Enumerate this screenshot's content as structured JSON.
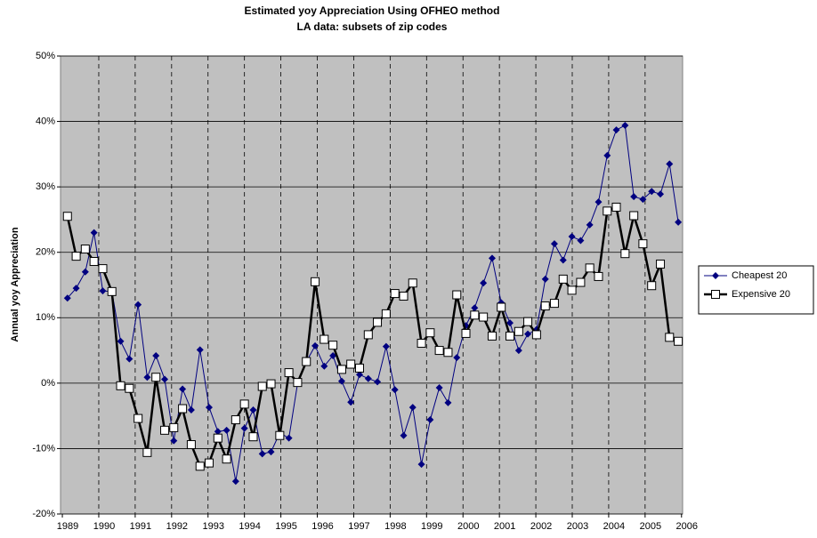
{
  "chart_data": {
    "type": "line",
    "title": "Estimated yoy Appreciation Using OFHEO method",
    "subtitle": "LA data: subsets of zip codes",
    "y_label": "Annual yoy Appreciation",
    "x": [
      1989.14,
      1989.38,
      1989.63,
      1989.87,
      1990.11,
      1990.36,
      1990.6,
      1990.84,
      1991.08,
      1991.33,
      1991.57,
      1991.81,
      1992.06,
      1992.3,
      1992.54,
      1992.78,
      1993.03,
      1993.27,
      1993.51,
      1993.76,
      1994.0,
      1994.24,
      1994.49,
      1994.73,
      1994.97,
      1995.22,
      1995.46,
      1995.7,
      1995.94,
      1996.19,
      1996.43,
      1996.67,
      1996.92,
      1997.16,
      1997.4,
      1997.65,
      1997.89,
      1998.13,
      1998.37,
      1998.62,
      1998.86,
      1999.1,
      1999.35,
      1999.59,
      1999.83,
      2000.08,
      2000.32,
      2000.56,
      2000.8,
      2001.05,
      2001.29,
      2001.53,
      2001.78,
      2002.02,
      2002.26,
      2002.51,
      2002.75,
      2002.99,
      2003.23,
      2003.48,
      2003.72,
      2003.96,
      2004.21,
      2004.45,
      2004.69,
      2004.94,
      2005.18,
      2005.42,
      2005.67,
      2005.91
    ],
    "series": [
      {
        "name": "Cheapest 20",
        "color": "#000080",
        "marker": "diamond",
        "values": [
          13.0,
          14.5,
          17.0,
          23.0,
          14.1,
          14.0,
          6.4,
          3.7,
          12.0,
          0.9,
          4.2,
          0.6,
          -8.8,
          -0.9,
          -4.1,
          5.1,
          -3.7,
          -7.4,
          -7.2,
          -15.0,
          -6.9,
          -4.1,
          -10.8,
          -10.5,
          -7.6,
          -8.4,
          0.0,
          3.3,
          5.7,
          2.6,
          4.2,
          0.3,
          -2.9,
          1.3,
          0.7,
          0.2,
          5.6,
          -1.0,
          -8.0,
          -3.7,
          -12.4,
          -5.6,
          -0.7,
          -3.0,
          3.9,
          8.8,
          11.5,
          15.3,
          19.1,
          12.3,
          9.2,
          5.0,
          7.5,
          8.2,
          15.9,
          21.3,
          18.8,
          22.4,
          21.8,
          24.2,
          27.7,
          34.8,
          38.7,
          39.4,
          28.5,
          28.1,
          29.3,
          28.9,
          33.5,
          24.6
        ]
      },
      {
        "name": "Expensive 20",
        "color": "#000000",
        "marker": "square",
        "values": [
          25.5,
          19.4,
          20.5,
          18.6,
          17.5,
          14.0,
          -0.4,
          -0.8,
          -5.4,
          -10.6,
          0.9,
          -7.2,
          -6.8,
          -3.9,
          -9.4,
          -12.7,
          -12.2,
          -8.4,
          -11.6,
          -5.6,
          -3.2,
          -8.2,
          -0.5,
          -0.1,
          -8.0,
          1.6,
          0.1,
          3.3,
          15.5,
          6.7,
          5.8,
          2.1,
          2.9,
          2.3,
          7.4,
          9.3,
          10.6,
          13.7,
          13.3,
          15.3,
          6.1,
          7.7,
          5.0,
          4.7,
          13.5,
          7.6,
          10.4,
          10.1,
          7.2,
          11.6,
          7.2,
          7.9,
          9.4,
          7.4,
          11.8,
          12.2,
          15.9,
          14.2,
          15.4,
          17.6,
          16.3,
          26.3,
          26.9,
          19.8,
          25.6,
          21.3,
          14.9,
          18.2,
          7.0,
          6.4
        ]
      }
    ],
    "xlim": [
      1988.95,
      2006.03
    ],
    "xticks": [
      1989,
      1990,
      1991,
      1992,
      1993,
      1994,
      1995,
      1996,
      1997,
      1998,
      1999,
      2000,
      2001,
      2002,
      2003,
      2004,
      2005,
      2006
    ],
    "ylim": [
      -20,
      50
    ],
    "yticks": [
      {
        "value": -20,
        "label": "-20%"
      },
      {
        "value": -10,
        "label": "-10%"
      },
      {
        "value": 0,
        "label": "0%"
      },
      {
        "value": 10,
        "label": "10%"
      },
      {
        "value": 20,
        "label": "20%"
      },
      {
        "value": 30,
        "label": "30%"
      },
      {
        "value": 40,
        "label": "40%"
      },
      {
        "value": 50,
        "label": "50%"
      }
    ],
    "plot_background": "#c0c0c0",
    "grid": true,
    "legend": "right"
  }
}
